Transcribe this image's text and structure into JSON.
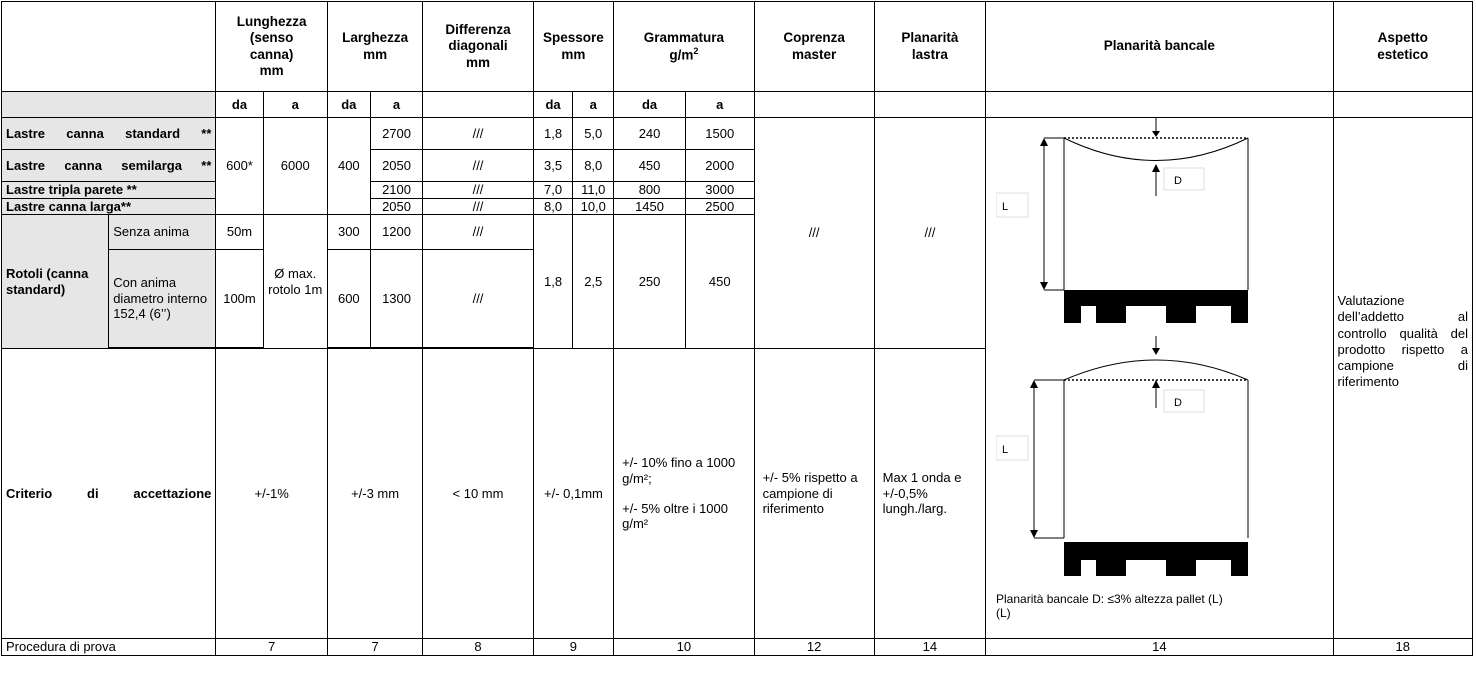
{
  "headers": {
    "lunghezza": "Lunghezza (senso canna) mm",
    "larghezza": "Larghezza mm",
    "differenza": "Differenza diagonali mm",
    "spessore": "Spessore mm",
    "grammatura": "Grammatura g/m²",
    "coprenza": "Coprenza master",
    "planarita_lastra": "Planarità lastra",
    "planarita_bancale": "Planarità bancale",
    "aspetto": "Aspetto estetico"
  },
  "subheaders": {
    "da": "da",
    "a": "a"
  },
  "rows": {
    "standard": {
      "label": "Lastre canna standard **",
      "larg_a": "2700",
      "diff": "///",
      "sp_da": "1,8",
      "sp_a": "5,0",
      "gr_da": "240",
      "gr_a": "1500"
    },
    "semilarga": {
      "label": "Lastre canna semilarga **",
      "larg_a": "2050",
      "diff": "///",
      "sp_da": "3,5",
      "sp_a": "8,0",
      "gr_da": "450",
      "gr_a": "2000"
    },
    "tripla": {
      "label": "Lastre tripla parete **",
      "larg_a": "2100",
      "diff": "///",
      "sp_da": "7,0",
      "sp_a": "11,0",
      "gr_da": "800",
      "gr_a": "3000"
    },
    "larga": {
      "label": "Lastre canna larga**",
      "larg_a": "2050",
      "diff": "///",
      "sp_da": "8,0",
      "sp_a": "10,0",
      "gr_da": "1450",
      "gr_a": "2500"
    },
    "lastre_common": {
      "lung_da": "600*",
      "lung_a": "6000",
      "larg_da": "400"
    },
    "coprenza_val": "///",
    "planarita_lastra_val": "///",
    "rotoli": {
      "label": "Rotoli (canna standard)",
      "senza_label": "Senza anima",
      "senza_lung_da": "50m",
      "senza_larg_da": "300",
      "senza_larg_a": "1200",
      "senza_diff": "///",
      "con_label": "Con anima diametro interno 152,4 (6’’)",
      "con_lung_da": "100m",
      "lung_a": "Ø max. rotolo 1m",
      "con_larg_da": "600",
      "con_larg_a": "1300",
      "con_diff": "///",
      "sp_da": "1,8",
      "sp_a": "2,5",
      "gr_da": "250",
      "gr_a": "450"
    }
  },
  "criterio": {
    "label": "Criterio di accettazione",
    "lunghezza": "+/-1%",
    "larghezza": "+/-3 mm",
    "differenza": "< 10 mm",
    "spessore": "+/- 0,1mm",
    "grammatura_1": "+/- 10% fino a 1000 g/m²;",
    "grammatura_2": "+/- 5% oltre i 1000 g/m²",
    "coprenza": "+/- 5% rispetto a campione di riferimento",
    "planarita_lastra": "Max 1 onda e +/-0,5% lungh./larg.",
    "planarita_bancale_note": "Planarità bancale D: ≤3% altezza pallet (L)",
    "aspetto": "Valutazione dell’addetto al controllo qualità del prodotto rispetto a campione di riferimento"
  },
  "diagram": {
    "label_L": "L",
    "label_D": "D"
  },
  "procedura": {
    "label": "Procedura di prova",
    "lunghezza": "7",
    "larghezza": "7",
    "differenza": "8",
    "spessore": "9",
    "grammatura": "10",
    "coprenza": "12",
    "planarita_lastra": "14",
    "planarita_bancale": "14",
    "aspetto": "18"
  }
}
